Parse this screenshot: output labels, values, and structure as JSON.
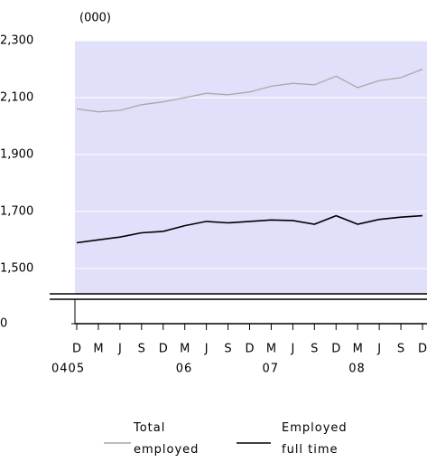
{
  "chart_data": {
    "type": "line",
    "unit_label": "(000)",
    "categories": [
      "D",
      "M",
      "J",
      "S",
      "D",
      "M",
      "J",
      "S",
      "D",
      "M",
      "J",
      "S",
      "D",
      "M",
      "J",
      "S",
      "D"
    ],
    "category_years": [
      "0405",
      null,
      null,
      null,
      null,
      "06",
      null,
      null,
      null,
      "07",
      null,
      null,
      null,
      "08",
      null,
      null,
      null
    ],
    "series": [
      {
        "name": "Total employed",
        "color": "#a8a8a8",
        "values": [
          2060,
          2050,
          2055,
          2075,
          2085,
          2100,
          2115,
          2110,
          2120,
          2140,
          2150,
          2145,
          2175,
          2135,
          2160,
          2170,
          2200
        ]
      },
      {
        "name": "Employed full time",
        "color": "#000000",
        "values": [
          1590,
          1600,
          1610,
          1625,
          1630,
          1650,
          1665,
          1660,
          1665,
          1670,
          1668,
          1655,
          1685,
          1655,
          1672,
          1680,
          1685
        ]
      }
    ],
    "ylim": [
      1420,
      2300
    ],
    "yticks": [
      {
        "value": 0,
        "label": "0"
      },
      {
        "value": 1500,
        "label": "1,500"
      },
      {
        "value": 1700,
        "label": "1,700"
      },
      {
        "value": 1900,
        "label": "1,900"
      },
      {
        "value": 2100,
        "label": "2,100"
      },
      {
        "value": 2300,
        "label": "2,300"
      }
    ],
    "axis_break": true,
    "grid": true
  }
}
